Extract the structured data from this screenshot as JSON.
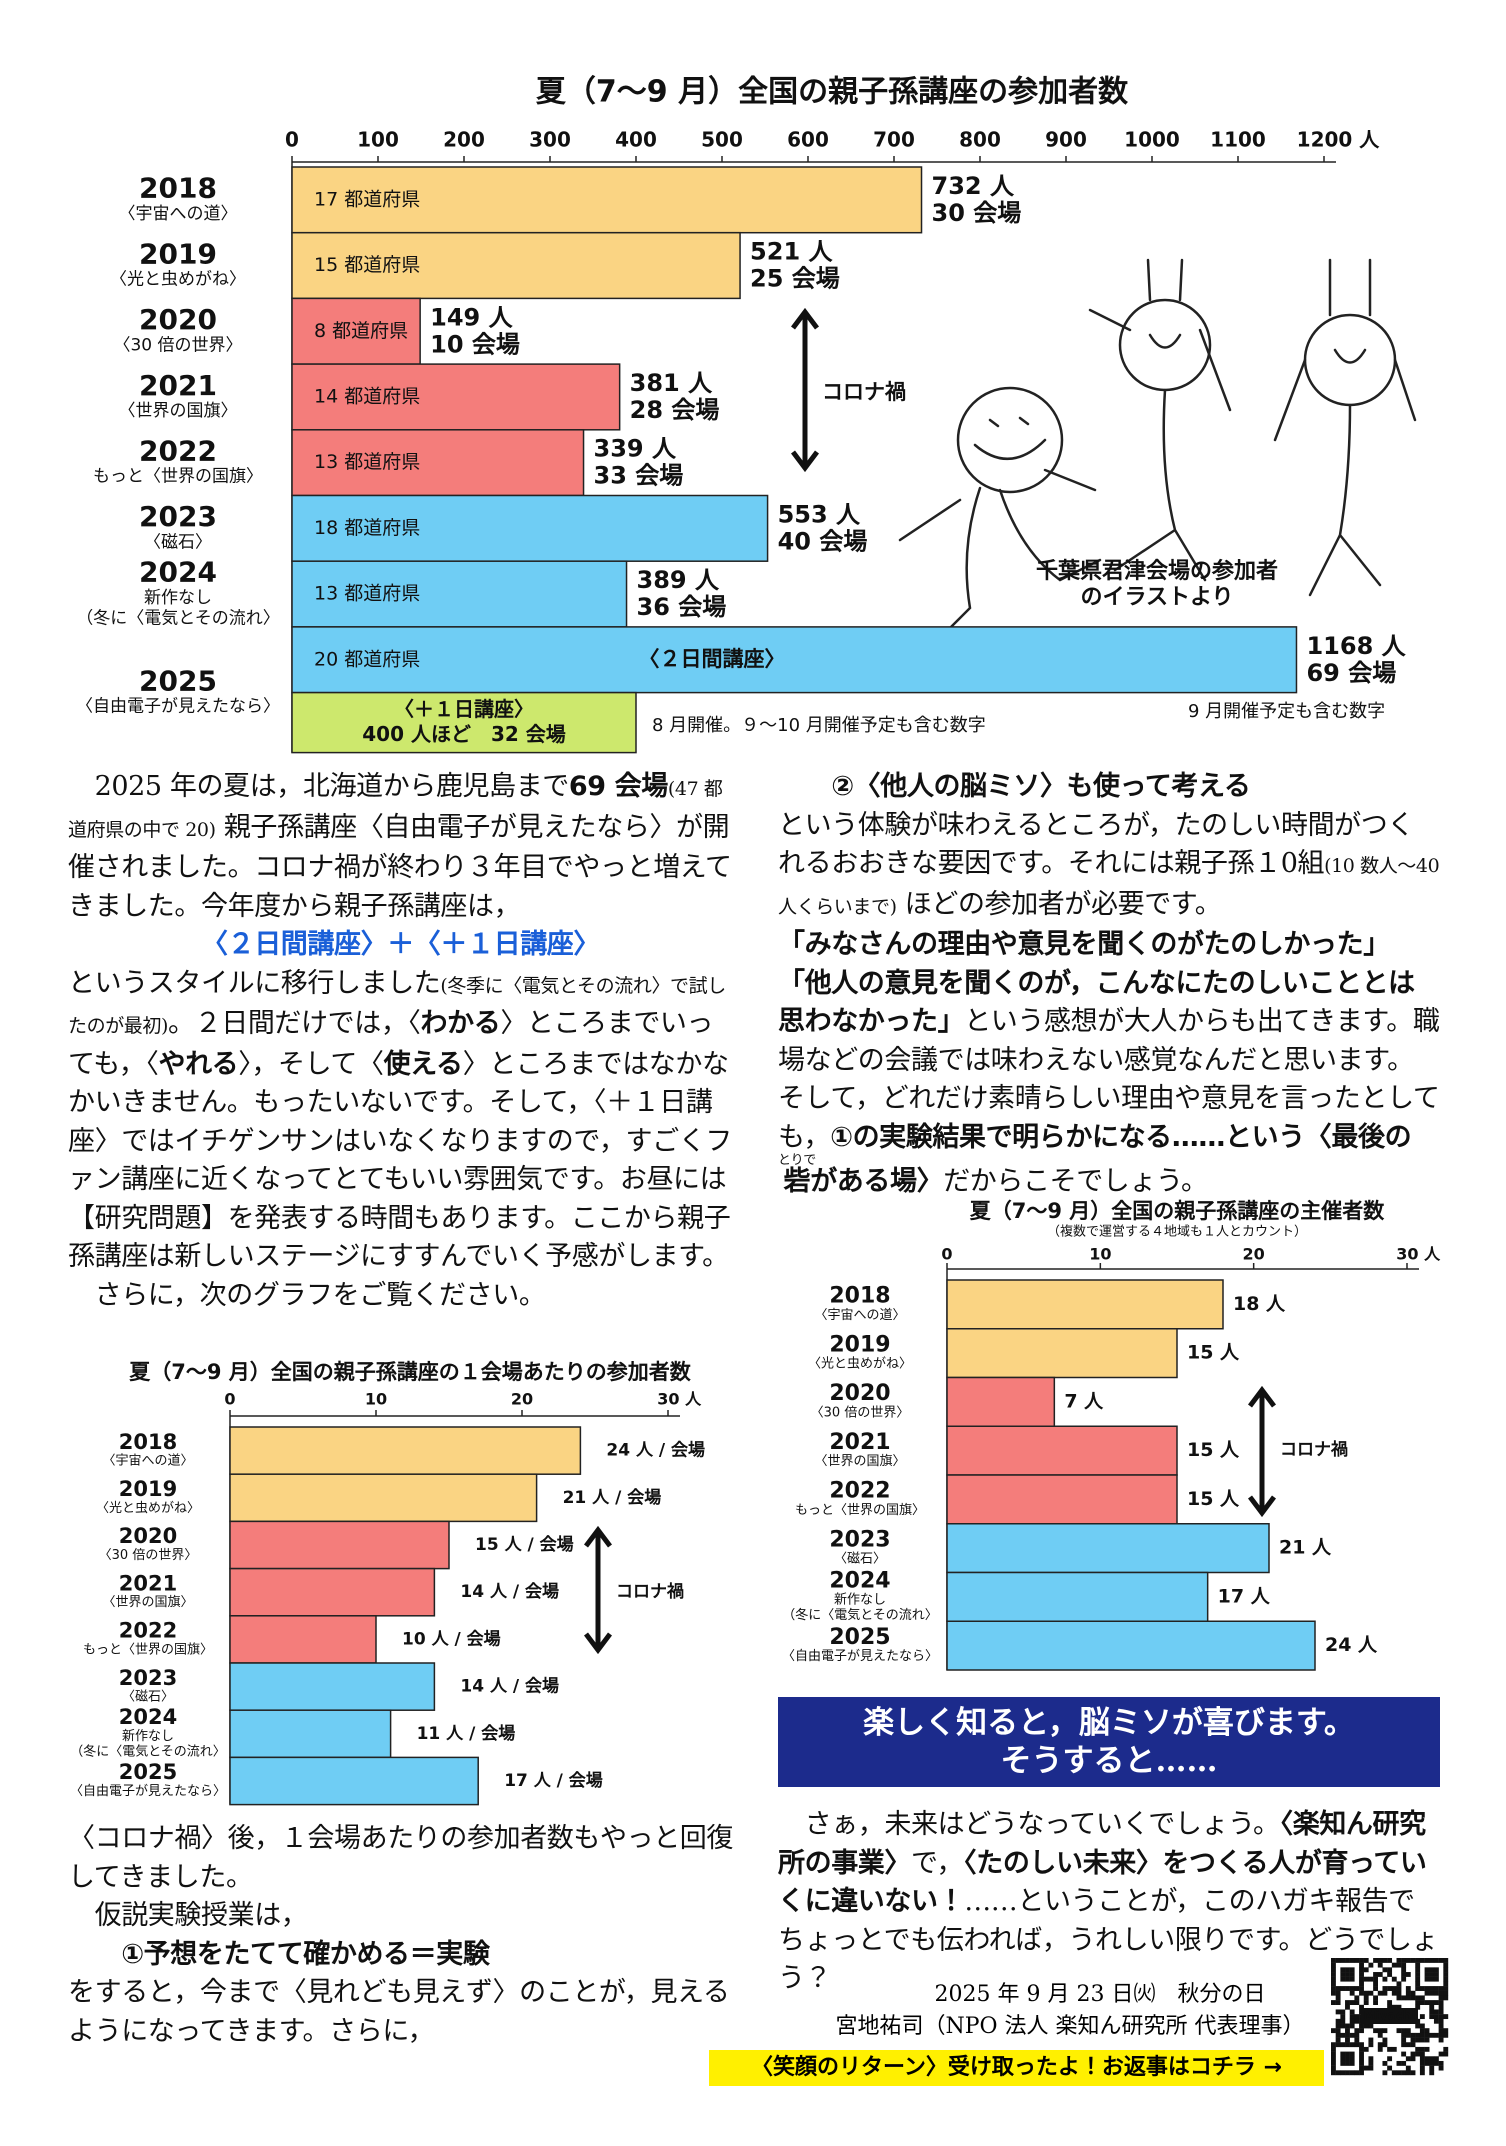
{
  "chart_data": [
    {
      "type": "bar",
      "orientation": "horizontal",
      "title": "夏（7〜9 月）全国の親子孫講座の参加者数",
      "categories": [
        "2018",
        "2019",
        "2020",
        "2021",
        "2022",
        "2023",
        "2024",
        "2025"
      ],
      "category_notes": [
        [
          "〈宇宙への道〉"
        ],
        [
          "〈光と虫めがね〉"
        ],
        [
          "〈30 倍の世界〉"
        ],
        [
          "〈世界の国旗〉"
        ],
        [
          "もっと〈世界の国旗〉"
        ],
        [
          "〈磁石〉"
        ],
        [
          "新作なし",
          "（冬に〈電気とその流れ〉"
        ],
        [
          "〈自由電子が見えたなら〉"
        ]
      ],
      "values": [
        732,
        521,
        149,
        381,
        339,
        553,
        389,
        1168
      ],
      "value_labels": [
        "732 人",
        "521 人",
        "149 人",
        "381 人",
        "339 人",
        "553 人",
        "389 人",
        "1168 人"
      ],
      "venue_labels": [
        "30 会場",
        "25 会場",
        "10 会場",
        "28 会場",
        "33 会場",
        "40 会場",
        "36 会場",
        "69 会場"
      ],
      "bar_labels": [
        "17 都道府県",
        "15 都道府県",
        "8 都道府県",
        "14 都道府県",
        "13 都道府県",
        "18 都道府県",
        "13 都道府県",
        "20 都道府県"
      ],
      "colors": [
        "#fad483",
        "#fad483",
        "#f47d7b",
        "#f47d7b",
        "#f47d7b",
        "#6fcdf4",
        "#6fcdf4",
        "#6fcdf4"
      ],
      "xlim": [
        0,
        1200
      ],
      "xticks": [
        0,
        100,
        200,
        300,
        400,
        500,
        600,
        700,
        800,
        900,
        1000,
        1100,
        {
          "value": 1200,
          "label": "1200 人"
        }
      ],
      "extra_bar": {
        "label": "〈＋１日講座〉",
        "value": 400,
        "value_label": "400 人ほど　32 会場",
        "color": "#cde86d"
      },
      "annotations": {
        "corona": "コロナ禍",
        "two_day": "〈２日間講座〉",
        "note_aug": "8 月開催。９〜10 月開催予定も含む数字",
        "note_sep": "9 月開催予定も含む数字"
      },
      "illustration_caption": [
        "千葉県君津会場の参加者",
        "のイラストより"
      ]
    },
    {
      "type": "bar",
      "orientation": "horizontal",
      "title": "夏（7〜9 月）全国の親子孫講座の１会場あたりの参加者数",
      "categories": [
        "2018",
        "2019",
        "2020",
        "2021",
        "2022",
        "2023",
        "2024",
        "2025"
      ],
      "category_notes": [
        [
          "〈宇宙への道〉"
        ],
        [
          "〈光と虫めがね〉"
        ],
        [
          "〈30 倍の世界〉"
        ],
        [
          "〈世界の国旗〉"
        ],
        [
          "もっと〈世界の国旗〉"
        ],
        [
          "〈磁石〉"
        ],
        [
          "新作なし",
          "（冬に〈電気とその流れ〉"
        ],
        [
          "〈自由電子が見えたなら〉"
        ]
      ],
      "values": [
        24,
        21,
        15,
        14,
        10,
        14,
        11,
        17
      ],
      "value_labels": [
        "24 人 / 会場",
        "21 人 / 会場",
        "15 人 / 会場",
        "14 人 / 会場",
        "10 人 / 会場",
        "14 人 / 会場",
        "11 人 / 会場",
        "17 人 / 会場"
      ],
      "colors": [
        "#fad483",
        "#fad483",
        "#f47d7b",
        "#f47d7b",
        "#f47d7b",
        "#6fcdf4",
        "#6fcdf4",
        "#6fcdf4"
      ],
      "xlim": [
        0,
        30
      ],
      "xticks": [
        0,
        10,
        20,
        {
          "value": 30,
          "label": "30 人"
        }
      ],
      "annotations": {
        "corona": "コロナ禍"
      }
    },
    {
      "type": "bar",
      "orientation": "horizontal",
      "title": "夏（7〜9 月）全国の親子孫講座の主催者数",
      "subtitle": "（複数で運営する４地域も１人とカウント）",
      "categories": [
        "2018",
        "2019",
        "2020",
        "2021",
        "2022",
        "2023",
        "2024",
        "2025"
      ],
      "category_notes": [
        [
          "〈宇宙への道〉"
        ],
        [
          "〈光と虫めがね〉"
        ],
        [
          "〈30 倍の世界〉"
        ],
        [
          "〈世界の国旗〉"
        ],
        [
          "もっと〈世界の国旗〉"
        ],
        [
          "〈磁石〉"
        ],
        [
          "新作なし",
          "（冬に〈電気とその流れ〉"
        ],
        [
          "〈自由電子が見えたなら〉"
        ]
      ],
      "values": [
        18,
        15,
        7,
        15,
        15,
        21,
        17,
        24
      ],
      "value_labels": [
        "18 人",
        "15 人",
        "7 人",
        "15 人",
        "15 人",
        "21 人",
        "17 人",
        "24 人"
      ],
      "colors": [
        "#fad483",
        "#fad483",
        "#f47d7b",
        "#f47d7b",
        "#f47d7b",
        "#6fcdf4",
        "#6fcdf4",
        "#6fcdf4"
      ],
      "xlim": [
        0,
        30
      ],
      "xticks": [
        0,
        10,
        20,
        {
          "value": 30,
          "label": "30 人"
        }
      ],
      "annotations": {
        "corona": "コロナ禍"
      }
    }
  ],
  "document": {
    "left_top": [
      [
        "　2025 年の夏は，北海道から鹿児島まで",
        {
          "b": "69 会場"
        },
        {
          "s": "(47 都道府県の中で 20)"
        },
        " 親子孫講座〈自由電子が見えたなら〉が開催されました。コロナ禍が終わり３年目でやっと増えてきました。今年度から親子孫講座は，"
      ],
      [
        {
          "c": "〈２日間講座〉＋〈＋１日講座〉"
        }
      ],
      [
        "というスタイルに移行しました",
        {
          "s": "(冬季に〈電気とその流れ〉で試したのが最初)"
        },
        "。２日間だけでは，〈",
        {
          "b": "わかる"
        },
        "〉ところまでいっても，〈",
        {
          "b": "やれる"
        },
        "〉，そして〈",
        {
          "b": "使える"
        },
        "〉ところまではなかなかいきません。もったいないです。そして，〈＋１日講座〉ではイチゲンサンはいなくなりますので，すごくファン講座に近くなってとてもいい雰囲気です。お昼には【研究問題】を発表する時間もあります。ここから親子孫講座は新しいステージにすすんでいく予感がします。"
      ],
      [
        "　さらに，次のグラフをご覧ください。"
      ]
    ],
    "left_bottom": [
      [
        "〈コロナ禍〉後，１会場あたりの参加者数もやっと回復してきました。"
      ],
      [
        "　仮説実験授業は，"
      ],
      [
        {
          "b": "　　①予想をたてて確かめる＝実験"
        }
      ],
      [
        "をすると，今まで〈見れども見えず〉のことが，見えるようになってきます。さらに，"
      ]
    ],
    "right_top": [
      [
        {
          "b": "　　②〈他人の脳ミソ〉も使って考える"
        }
      ],
      [
        "という体験が味わえるところが，たのしい時間がつくれるおおきな要因です。それには親子孫１0組",
        {
          "s": "(10 数人〜40 人くらいまで)"
        },
        " ほどの参加者が必要です。"
      ],
      [
        {
          "b": "「みなさんの理由や意見を聞くのがたのしかった」"
        }
      ],
      [
        {
          "b": "「他人の意見を聞くのが，こんなにたのしいこととは思わなかった」"
        },
        "という感想が大人からも出てきます。職場などの会議では味わえない感覚なんだと思います。そして，どれだけ素晴らしい理由や意見を言ったとしても，",
        {
          "b": "①の実験結果で明らかになる……という〈最後の"
        },
        {
          "ruby": "砦",
          "rt": "とりで"
        },
        {
          "b": "がある場〉"
        },
        "だからこそでしょう。"
      ]
    ],
    "banner": [
      "楽しく知ると，脳ミソが喜びます。",
      "そうすると……"
    ],
    "closing": [
      [
        "　さぁ，未来はどうなっていくでしょう。",
        {
          "b": "〈楽知ん研究所の事業〉"
        },
        "で，",
        {
          "b": "〈たのしい未来〉をつくる人が育っていくに違いない！"
        },
        "……ということが，このハガキ報告でちょっとでも伝われば，うれしい限りです。どうでしょう？"
      ]
    ],
    "date": "2025 年 9 月 23 日㈫　秋分の日",
    "signature": "宮地祐司（NPO 法人 楽知ん研究所 代表理事）",
    "reply_banner": "〈笑顔のリターン〉受け取ったよ！お返事はコチラ →",
    "qr_label": "Miyachi"
  }
}
